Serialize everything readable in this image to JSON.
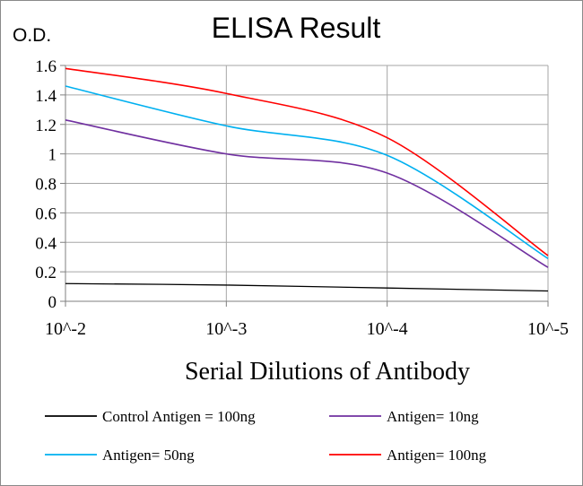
{
  "chart_data": {
    "type": "line",
    "title": "ELISA Result",
    "ylabel": "O.D.",
    "xlabel": "Serial  Dilutions  of Antibody",
    "x_categories": [
      "10^-2",
      "10^-3",
      "10^-4",
      "10^-5"
    ],
    "ylim": [
      0,
      1.6
    ],
    "y_ticks": [
      "0",
      "0.2",
      "0.4",
      "0.6",
      "0.8",
      "1",
      "1.2",
      "1.4",
      "1.6"
    ],
    "grid": true,
    "legend_position": "bottom",
    "series": [
      {
        "name": "Control Antigen = 100ng",
        "color": "#000000",
        "values": [
          0.12,
          0.11,
          0.09,
          0.07
        ]
      },
      {
        "name": "Antigen= 10ng",
        "color": "#7030a0",
        "values": [
          1.23,
          1.0,
          0.87,
          0.23
        ]
      },
      {
        "name": "Antigen= 50ng",
        "color": "#00b0f0",
        "values": [
          1.46,
          1.19,
          0.99,
          0.29
        ]
      },
      {
        "name": "Antigen= 100ng",
        "color": "#ff0000",
        "values": [
          1.58,
          1.41,
          1.11,
          0.31
        ]
      }
    ]
  }
}
